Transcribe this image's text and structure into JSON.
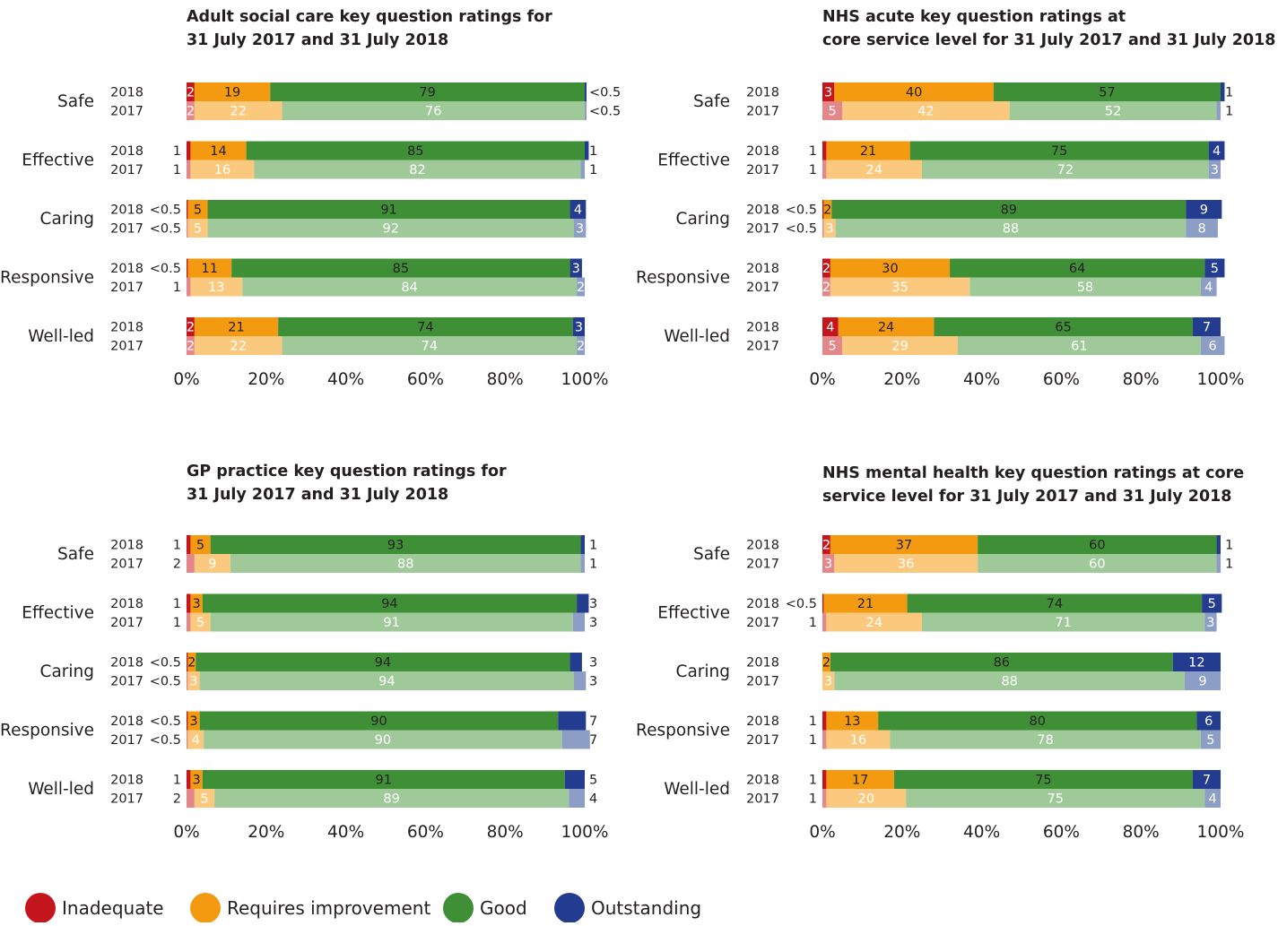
{
  "legend": [
    {
      "name": "Inadequate",
      "color": "#c4161c"
    },
    {
      "name": "Requires improvement",
      "color": "#f39a11"
    },
    {
      "name": "Good",
      "color": "#3f8f37"
    },
    {
      "name": "Outstanding",
      "color": "#233c8f"
    }
  ],
  "light_colors": [
    "#e4878b",
    "#fac97d",
    "#a0c99a",
    "#8c9dc6"
  ],
  "chart_data": [
    {
      "type": "bar",
      "orientation": "horizontal-stacked-percent",
      "title_lines": [
        "Adult social care key question ratings for",
        "31 July 2017 and 31 July 2018"
      ],
      "categories": [
        "Safe",
        "Effective",
        "Caring",
        "Responsive",
        "Well-led"
      ],
      "years": [
        "2018",
        "2017"
      ],
      "x_ticks": [
        "0%",
        "20%",
        "40%",
        "60%",
        "80%",
        "100%"
      ],
      "xlim": [
        0,
        100
      ],
      "rows": [
        [
          {
            "values": [
              2,
              19,
              79,
              0.3
            ],
            "left": "",
            "right": "<0.5",
            "labels": [
              "2",
              "19",
              "79",
              ""
            ]
          },
          {
            "values": [
              2,
              22,
              76,
              0.3
            ],
            "left": "",
            "right": "<0.5",
            "labels": [
              "2",
              "22",
              "76",
              ""
            ]
          }
        ],
        [
          {
            "values": [
              1,
              14,
              85,
              1
            ],
            "left": "1",
            "right": "1",
            "labels": [
              "",
              "14",
              "85",
              ""
            ]
          },
          {
            "values": [
              1,
              16,
              82,
              1
            ],
            "left": "1",
            "right": "1",
            "labels": [
              "",
              "16",
              "82",
              ""
            ]
          }
        ],
        [
          {
            "values": [
              0.3,
              5,
              91,
              4
            ],
            "left": "<0.5",
            "right": "",
            "labels": [
              "",
              "5",
              "91",
              "4"
            ]
          },
          {
            "values": [
              0.3,
              5,
              92,
              3
            ],
            "left": "<0.5",
            "right": "",
            "labels": [
              "",
              "5",
              "92",
              "3"
            ]
          }
        ],
        [
          {
            "values": [
              0.3,
              11,
              85,
              3
            ],
            "left": "<0.5",
            "right": "",
            "labels": [
              "",
              "11",
              "85",
              "3"
            ]
          },
          {
            "values": [
              1,
              13,
              84,
              2
            ],
            "left": "1",
            "right": "",
            "labels": [
              "",
              "13",
              "84",
              "2"
            ]
          }
        ],
        [
          {
            "values": [
              2,
              21,
              74,
              3
            ],
            "left": "",
            "right": "",
            "labels": [
              "2",
              "21",
              "74",
              "3"
            ]
          },
          {
            "values": [
              2,
              22,
              74,
              2
            ],
            "left": "",
            "right": "",
            "labels": [
              "2",
              "22",
              "74",
              "2"
            ]
          }
        ]
      ]
    },
    {
      "type": "bar",
      "orientation": "horizontal-stacked-percent",
      "title_lines": [
        "NHS acute key question ratings at",
        "core service level for 31 July 2017 and 31 July 2018"
      ],
      "categories": [
        "Safe",
        "Effective",
        "Caring",
        "Responsive",
        "Well-led"
      ],
      "years": [
        "2018",
        "2017"
      ],
      "x_ticks": [
        "0%",
        "20%",
        "40%",
        "60%",
        "80%",
        "100%"
      ],
      "xlim": [
        0,
        100
      ],
      "rows": [
        [
          {
            "values": [
              3,
              40,
              57,
              1
            ],
            "left": "",
            "right": "1",
            "labels": [
              "3",
              "40",
              "57",
              ""
            ]
          },
          {
            "values": [
              5,
              42,
              52,
              1
            ],
            "left": "",
            "right": "1",
            "labels": [
              "5",
              "42",
              "52",
              ""
            ]
          }
        ],
        [
          {
            "values": [
              1,
              21,
              75,
              4
            ],
            "left": "1",
            "right": "",
            "labels": [
              "",
              "21",
              "75",
              "4"
            ]
          },
          {
            "values": [
              1,
              24,
              72,
              3
            ],
            "left": "1",
            "right": "",
            "labels": [
              "",
              "24",
              "72",
              "3"
            ]
          }
        ],
        [
          {
            "values": [
              0.3,
              2,
              89,
              9
            ],
            "left": "<0.5",
            "right": "",
            "labels": [
              "",
              "2",
              "89",
              "9"
            ]
          },
          {
            "values": [
              0.3,
              3,
              88,
              8
            ],
            "left": "<0.5",
            "right": "",
            "labels": [
              "",
              "3",
              "88",
              "8"
            ]
          }
        ],
        [
          {
            "values": [
              2,
              30,
              64,
              5
            ],
            "left": "",
            "right": "",
            "labels": [
              "2",
              "30",
              "64",
              "5"
            ]
          },
          {
            "values": [
              2,
              35,
              58,
              4
            ],
            "left": "",
            "right": "",
            "labels": [
              "2",
              "35",
              "58",
              "4"
            ]
          }
        ],
        [
          {
            "values": [
              4,
              24,
              65,
              7
            ],
            "left": "",
            "right": "",
            "labels": [
              "4",
              "24",
              "65",
              "7"
            ]
          },
          {
            "values": [
              5,
              29,
              61,
              6
            ],
            "left": "",
            "right": "",
            "labels": [
              "5",
              "29",
              "61",
              "6"
            ]
          }
        ]
      ]
    },
    {
      "type": "bar",
      "orientation": "horizontal-stacked-percent",
      "title_lines": [
        "GP practice key question ratings for",
        "31 July 2017 and 31 July 2018"
      ],
      "categories": [
        "Safe",
        "Effective",
        "Caring",
        "Responsive",
        "Well-led"
      ],
      "years": [
        "2018",
        "2017"
      ],
      "x_ticks": [
        "0%",
        "20%",
        "40%",
        "60%",
        "80%",
        "100%"
      ],
      "xlim": [
        0,
        100
      ],
      "rows": [
        [
          {
            "values": [
              1,
              5,
              93,
              1
            ],
            "left": "1",
            "right": "1",
            "labels": [
              "",
              "5",
              "93",
              ""
            ]
          },
          {
            "values": [
              2,
              9,
              88,
              1
            ],
            "left": "2",
            "right": "1",
            "labels": [
              "",
              "9",
              "88",
              ""
            ]
          }
        ],
        [
          {
            "values": [
              1,
              3,
              94,
              3
            ],
            "left": "1",
            "right": "3",
            "labels": [
              "",
              "3",
              "94",
              ""
            ]
          },
          {
            "values": [
              1,
              5,
              91,
              3
            ],
            "left": "1",
            "right": "3",
            "labels": [
              "",
              "5",
              "91",
              ""
            ]
          }
        ],
        [
          {
            "values": [
              0.3,
              2,
              94,
              3
            ],
            "left": "<0.5",
            "right": "3",
            "labels": [
              "",
              "2",
              "94",
              ""
            ]
          },
          {
            "values": [
              0.3,
              3,
              94,
              3
            ],
            "left": "<0.5",
            "right": "3",
            "labels": [
              "",
              "3",
              "94",
              ""
            ]
          }
        ],
        [
          {
            "values": [
              0.3,
              3,
              90,
              7
            ],
            "left": "<0.5",
            "right": "7",
            "labels": [
              "",
              "3",
              "90",
              ""
            ]
          },
          {
            "values": [
              0.3,
              4,
              90,
              7
            ],
            "left": "<0.5",
            "right": "7",
            "labels": [
              "",
              "4",
              "90",
              ""
            ]
          }
        ],
        [
          {
            "values": [
              1,
              3,
              91,
              5
            ],
            "left": "1",
            "right": "5",
            "labels": [
              "",
              "3",
              "91",
              ""
            ]
          },
          {
            "values": [
              2,
              5,
              89,
              4
            ],
            "left": "2",
            "right": "4",
            "labels": [
              "",
              "5",
              "89",
              ""
            ]
          }
        ]
      ]
    },
    {
      "type": "bar",
      "orientation": "horizontal-stacked-percent",
      "title_lines": [
        "NHS mental health key question ratings at core",
        "service level for 31 July 2017 and 31 July 2018"
      ],
      "categories": [
        "Safe",
        "Effective",
        "Caring",
        "Responsive",
        "Well-led"
      ],
      "years": [
        "2018",
        "2017"
      ],
      "x_ticks": [
        "0%",
        "20%",
        "40%",
        "60%",
        "80%",
        "100%"
      ],
      "xlim": [
        0,
        100
      ],
      "rows": [
        [
          {
            "values": [
              2,
              37,
              60,
              1
            ],
            "left": "",
            "right": "1",
            "labels": [
              "2",
              "37",
              "60",
              ""
            ]
          },
          {
            "values": [
              3,
              36,
              60,
              1
            ],
            "left": "",
            "right": "1",
            "labels": [
              "3",
              "36",
              "60",
              ""
            ]
          }
        ],
        [
          {
            "values": [
              0.3,
              21,
              74,
              5
            ],
            "left": "<0.5",
            "right": "",
            "labels": [
              "",
              "21",
              "74",
              "5"
            ]
          },
          {
            "values": [
              1,
              24,
              71,
              3
            ],
            "left": "1",
            "right": "",
            "labels": [
              "",
              "24",
              "71",
              "3"
            ]
          }
        ],
        [
          {
            "values": [
              0,
              2,
              86,
              12
            ],
            "left": "",
            "right": "",
            "labels": [
              "",
              "2",
              "86",
              "12"
            ]
          },
          {
            "values": [
              0,
              3,
              88,
              9
            ],
            "left": "",
            "right": "",
            "labels": [
              "",
              "3",
              "88",
              "9"
            ]
          }
        ],
        [
          {
            "values": [
              1,
              13,
              80,
              6
            ],
            "left": "1",
            "right": "",
            "labels": [
              "",
              "13",
              "80",
              "6"
            ]
          },
          {
            "values": [
              1,
              16,
              78,
              5
            ],
            "left": "1",
            "right": "",
            "labels": [
              "",
              "16",
              "78",
              "5"
            ]
          }
        ],
        [
          {
            "values": [
              1,
              17,
              75,
              7
            ],
            "left": "1",
            "right": "",
            "labels": [
              "",
              "17",
              "75",
              "7"
            ]
          },
          {
            "values": [
              1,
              20,
              75,
              4
            ],
            "left": "1",
            "right": "",
            "labels": [
              "",
              "20",
              "75",
              "4"
            ]
          }
        ]
      ]
    }
  ]
}
